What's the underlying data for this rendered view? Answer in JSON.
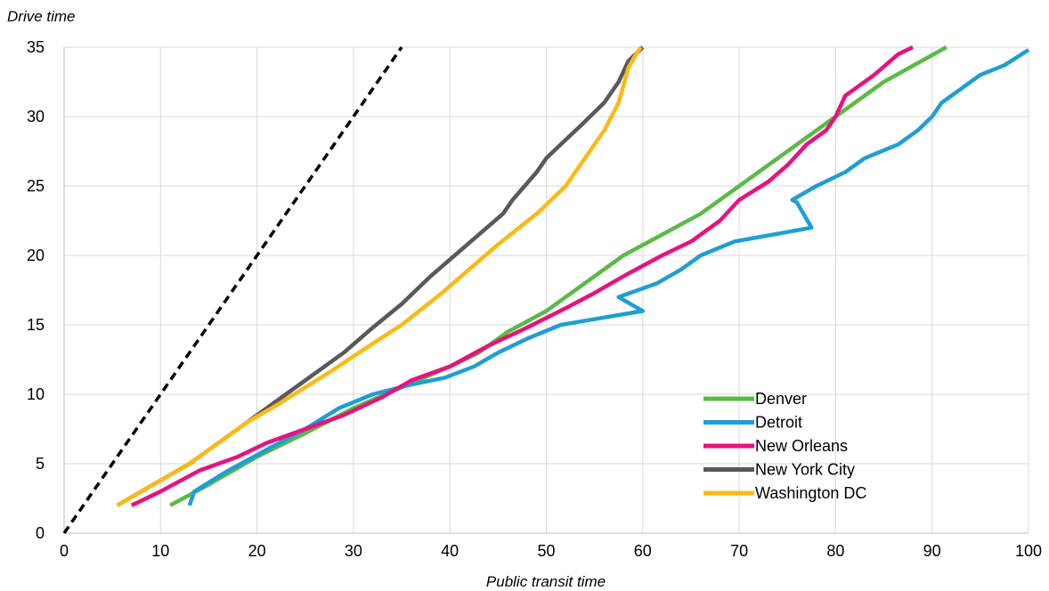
{
  "chart_data": {
    "type": "line",
    "xlabel": "Public transit time",
    "ylabel": "Drive time",
    "xlim": [
      0,
      100
    ],
    "ylim": [
      0,
      35
    ],
    "xticks": [
      0,
      10,
      20,
      30,
      40,
      50,
      60,
      70,
      80,
      90,
      100
    ],
    "yticks": [
      0,
      5,
      10,
      15,
      20,
      25,
      30,
      35
    ],
    "grid": true,
    "legend_position": "bottom-right",
    "reference_line": {
      "style": "dashed",
      "color": "#000000",
      "points": [
        [
          0,
          0
        ],
        [
          35,
          35
        ]
      ]
    },
    "series": [
      {
        "name": "Denver",
        "color": "#5cb946",
        "points": [
          [
            11,
            2
          ],
          [
            15,
            3.5
          ],
          [
            20,
            5.5
          ],
          [
            25,
            7.2
          ],
          [
            30,
            9
          ],
          [
            35,
            10.5
          ],
          [
            40,
            12
          ],
          [
            43,
            13
          ],
          [
            46,
            14.5
          ],
          [
            50,
            16
          ],
          [
            54,
            18
          ],
          [
            58,
            20
          ],
          [
            62,
            21.5
          ],
          [
            66,
            23
          ],
          [
            70,
            25
          ],
          [
            74,
            27
          ],
          [
            78,
            29
          ],
          [
            81,
            30.5
          ],
          [
            85,
            32.5
          ],
          [
            91.5,
            35
          ]
        ]
      },
      {
        "name": "Detroit",
        "color": "#1f9ed5",
        "points": [
          [
            13,
            2
          ],
          [
            13.5,
            3
          ],
          [
            17,
            4.5
          ],
          [
            21,
            6
          ],
          [
            25,
            7.5
          ],
          [
            28.5,
            9
          ],
          [
            32,
            10
          ],
          [
            36,
            10.7
          ],
          [
            39.5,
            11.2
          ],
          [
            42.5,
            12
          ],
          [
            45,
            13
          ],
          [
            48,
            14
          ],
          [
            51.5,
            15
          ],
          [
            60,
            16
          ],
          [
            57.5,
            17
          ],
          [
            61.5,
            18
          ],
          [
            64,
            19
          ],
          [
            66,
            20
          ],
          [
            69.5,
            21
          ],
          [
            77.5,
            22
          ],
          [
            76,
            23.8
          ],
          [
            75.5,
            24
          ],
          [
            78,
            25
          ],
          [
            81,
            26
          ],
          [
            83,
            27
          ],
          [
            86.5,
            28
          ],
          [
            88.5,
            29
          ],
          [
            90,
            30
          ],
          [
            91,
            31
          ],
          [
            93,
            32
          ],
          [
            95,
            33
          ],
          [
            97.5,
            33.7
          ],
          [
            100,
            34.8
          ]
        ]
      },
      {
        "name": "New Orleans",
        "color": "#e8127f",
        "points": [
          [
            7,
            2
          ],
          [
            10,
            3
          ],
          [
            14,
            4.5
          ],
          [
            18,
            5.5
          ],
          [
            21,
            6.5
          ],
          [
            25,
            7.5
          ],
          [
            29,
            8.5
          ],
          [
            33,
            9.8
          ],
          [
            36,
            11
          ],
          [
            40,
            12
          ],
          [
            44,
            13.5
          ],
          [
            48,
            14.8
          ],
          [
            52,
            16.2
          ],
          [
            55,
            17.3
          ],
          [
            58,
            18.5
          ],
          [
            62,
            20
          ],
          [
            65,
            21
          ],
          [
            68,
            22.5
          ],
          [
            70,
            24
          ],
          [
            73,
            25.3
          ],
          [
            75,
            26.5
          ],
          [
            77,
            28
          ],
          [
            79,
            29
          ],
          [
            80,
            30
          ],
          [
            81,
            31.5
          ],
          [
            84,
            33
          ],
          [
            86.5,
            34.5
          ],
          [
            88,
            35
          ]
        ]
      },
      {
        "name": "New York City",
        "color": "#58595b",
        "points": [
          [
            5.5,
            2
          ],
          [
            8,
            3
          ],
          [
            10,
            3.8
          ],
          [
            13,
            5
          ],
          [
            16,
            6.5
          ],
          [
            19,
            8
          ],
          [
            23,
            10
          ],
          [
            26,
            11.5
          ],
          [
            29,
            13
          ],
          [
            32,
            14.8
          ],
          [
            35,
            16.5
          ],
          [
            38,
            18.5
          ],
          [
            40.5,
            20
          ],
          [
            43,
            21.5
          ],
          [
            45.5,
            23
          ],
          [
            46.5,
            24
          ],
          [
            49,
            26
          ],
          [
            50,
            27
          ],
          [
            51.5,
            28
          ],
          [
            53.5,
            29.3
          ],
          [
            56,
            31
          ],
          [
            57.5,
            32.5
          ],
          [
            58.5,
            34
          ],
          [
            60,
            35
          ]
        ]
      },
      {
        "name": "Washington DC",
        "color": "#fdb913",
        "points": [
          [
            5.5,
            2
          ],
          [
            8,
            3
          ],
          [
            10,
            3.8
          ],
          [
            13,
            5
          ],
          [
            16,
            6.5
          ],
          [
            19,
            8
          ],
          [
            22,
            9.2
          ],
          [
            25,
            10.5
          ],
          [
            28,
            11.8
          ],
          [
            31,
            13.2
          ],
          [
            35,
            15
          ],
          [
            39,
            17.2
          ],
          [
            42,
            19
          ],
          [
            45,
            20.8
          ],
          [
            49,
            23
          ],
          [
            52,
            25
          ],
          [
            54,
            27
          ],
          [
            56,
            29
          ],
          [
            57.5,
            31
          ],
          [
            58.5,
            33.5
          ],
          [
            59.3,
            34.5
          ],
          [
            59.8,
            35
          ]
        ]
      }
    ]
  }
}
